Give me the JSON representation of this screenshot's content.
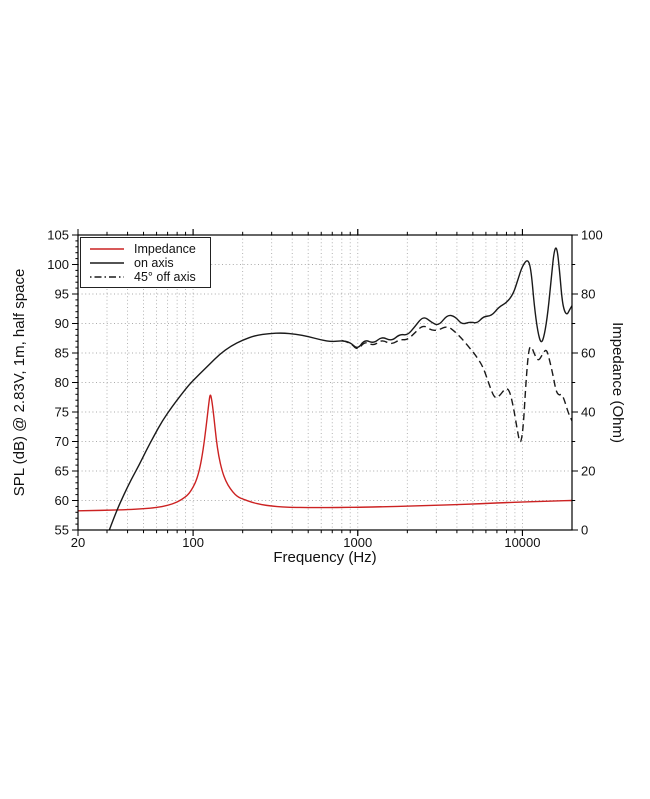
{
  "chart_data": {
    "type": "line",
    "title": "",
    "x_axis": {
      "label": "Frequency (Hz)",
      "scale": "log",
      "range": [
        20,
        20000
      ],
      "ticks": [
        20,
        100,
        1000,
        10000
      ]
    },
    "y_left": {
      "label": "SPL (dB) @ 2.83V, 1m, half space",
      "range": [
        55,
        105
      ],
      "ticks": [
        55,
        60,
        65,
        70,
        75,
        80,
        85,
        90,
        95,
        100,
        105
      ]
    },
    "y_right": {
      "label": "Impedance (Ohm)",
      "range": [
        0,
        100
      ],
      "ticks": [
        0,
        20,
        40,
        60,
        80,
        100
      ]
    },
    "grid": "dotted",
    "legend_position": "top-left",
    "series": [
      {
        "name": "Impedance",
        "id": "impedance-curve",
        "axis": "right",
        "unit": "Ohm",
        "color": "#cc2222",
        "style": "solid",
        "points": [
          [
            20,
            6.5
          ],
          [
            25,
            6.6
          ],
          [
            30,
            6.7
          ],
          [
            40,
            6.9
          ],
          [
            50,
            7.2
          ],
          [
            60,
            7.6
          ],
          [
            70,
            8.3
          ],
          [
            80,
            9.4
          ],
          [
            90,
            11.2
          ],
          [
            95,
            12.5
          ],
          [
            100,
            14.5
          ],
          [
            105,
            17
          ],
          [
            110,
            21
          ],
          [
            115,
            27
          ],
          [
            120,
            35
          ],
          [
            124,
            42
          ],
          [
            127,
            46.5
          ],
          [
            130,
            44
          ],
          [
            134,
            38
          ],
          [
            138,
            31
          ],
          [
            143,
            25
          ],
          [
            150,
            20
          ],
          [
            158,
            16.5
          ],
          [
            168,
            14
          ],
          [
            180,
            12
          ],
          [
            190,
            11
          ],
          [
            200,
            10.5
          ],
          [
            230,
            9.3
          ],
          [
            260,
            8.6
          ],
          [
            300,
            8.1
          ],
          [
            350,
            7.8
          ],
          [
            400,
            7.7
          ],
          [
            500,
            7.6
          ],
          [
            600,
            7.6
          ],
          [
            700,
            7.6
          ],
          [
            800,
            7.65
          ],
          [
            1000,
            7.7
          ],
          [
            1500,
            7.9
          ],
          [
            2000,
            8.1
          ],
          [
            3000,
            8.4
          ],
          [
            4000,
            8.6
          ],
          [
            5000,
            8.8
          ],
          [
            6000,
            9.0
          ],
          [
            8000,
            9.3
          ],
          [
            10000,
            9.5
          ],
          [
            13000,
            9.7
          ],
          [
            16000,
            9.85
          ],
          [
            20000,
            10
          ]
        ]
      },
      {
        "name": "on axis",
        "id": "on-axis-curve",
        "axis": "left",
        "unit": "dB",
        "color": "#1a1a1a",
        "style": "solid",
        "points": [
          [
            31,
            55
          ],
          [
            34,
            58
          ],
          [
            38,
            61
          ],
          [
            42,
            63.5
          ],
          [
            47,
            66
          ],
          [
            52,
            68.5
          ],
          [
            58,
            71
          ],
          [
            65,
            73.5
          ],
          [
            75,
            76
          ],
          [
            85,
            78
          ],
          [
            95,
            79.7
          ],
          [
            110,
            81.5
          ],
          [
            125,
            83
          ],
          [
            145,
            84.8
          ],
          [
            170,
            86.2
          ],
          [
            200,
            87.2
          ],
          [
            240,
            88
          ],
          [
            290,
            88.3
          ],
          [
            350,
            88.4
          ],
          [
            420,
            88.2
          ],
          [
            500,
            87.8
          ],
          [
            600,
            87.2
          ],
          [
            700,
            86.9
          ],
          [
            800,
            87.1
          ],
          [
            900,
            86.8
          ],
          [
            1000,
            85.6
          ],
          [
            1100,
            87.3
          ],
          [
            1250,
            86.6
          ],
          [
            1400,
            87.8
          ],
          [
            1600,
            87.0
          ],
          [
            1800,
            88.2
          ],
          [
            2000,
            88.0
          ],
          [
            2200,
            89.3
          ],
          [
            2500,
            91.3
          ],
          [
            2800,
            90.2
          ],
          [
            3100,
            89.6
          ],
          [
            3500,
            91.5
          ],
          [
            3900,
            91.2
          ],
          [
            4300,
            89.8
          ],
          [
            4800,
            90.3
          ],
          [
            5300,
            90.0
          ],
          [
            5800,
            91.2
          ],
          [
            6500,
            91.3
          ],
          [
            7200,
            92.8
          ],
          [
            8000,
            93.5
          ],
          [
            8800,
            95
          ],
          [
            9400,
            97.5
          ],
          [
            10000,
            99.8
          ],
          [
            10800,
            101
          ],
          [
            11300,
            99
          ],
          [
            11800,
            93
          ],
          [
            12400,
            88.5
          ],
          [
            13000,
            86.5
          ],
          [
            13600,
            88
          ],
          [
            14300,
            92
          ],
          [
            15000,
            98
          ],
          [
            15600,
            102.5
          ],
          [
            16200,
            103
          ],
          [
            16800,
            99
          ],
          [
            17400,
            94
          ],
          [
            18000,
            92
          ],
          [
            18700,
            91.5
          ],
          [
            19300,
            92.3
          ],
          [
            20000,
            93
          ]
        ]
      },
      {
        "name": "45° off axis",
        "id": "off-axis-curve",
        "axis": "left",
        "unit": "dB",
        "color": "#1a1a1a",
        "style": "dashed",
        "points": [
          [
            800,
            87.1
          ],
          [
            900,
            86.8
          ],
          [
            1000,
            85.4
          ],
          [
            1100,
            87.0
          ],
          [
            1250,
            86.2
          ],
          [
            1400,
            87.3
          ],
          [
            1600,
            86.4
          ],
          [
            1800,
            87.3
          ],
          [
            2000,
            87.2
          ],
          [
            2200,
            88.3
          ],
          [
            2500,
            89.8
          ],
          [
            2800,
            88.8
          ],
          [
            3100,
            88.9
          ],
          [
            3500,
            89.6
          ],
          [
            3900,
            88.6
          ],
          [
            4300,
            87.4
          ],
          [
            4800,
            85.8
          ],
          [
            5300,
            84.3
          ],
          [
            5800,
            82.5
          ],
          [
            6300,
            79.5
          ],
          [
            6800,
            77.2
          ],
          [
            7300,
            77.8
          ],
          [
            7800,
            78.9
          ],
          [
            8300,
            78.9
          ],
          [
            8800,
            76
          ],
          [
            9300,
            72
          ],
          [
            9700,
            69.3
          ],
          [
            10100,
            72
          ],
          [
            10500,
            80
          ],
          [
            10900,
            85.5
          ],
          [
            11300,
            86.3
          ],
          [
            11900,
            84.6
          ],
          [
            12500,
            83.6
          ],
          [
            13200,
            84.7
          ],
          [
            14000,
            85.8
          ],
          [
            14700,
            83.5
          ],
          [
            15400,
            81
          ],
          [
            16000,
            78.5
          ],
          [
            16700,
            77.8
          ],
          [
            17300,
            78.1
          ],
          [
            18000,
            77
          ],
          [
            19000,
            74.8
          ],
          [
            20000,
            73.5
          ]
        ]
      }
    ]
  }
}
